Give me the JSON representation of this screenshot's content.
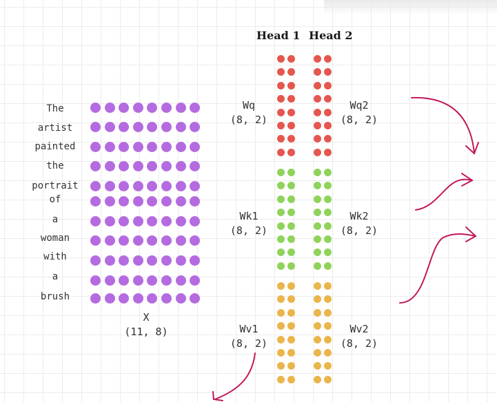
{
  "heads": [
    "Head 1",
    "Head 2"
  ],
  "words": [
    "The",
    "artist",
    "painted",
    "the",
    "portrait",
    "of",
    "a",
    "woman",
    "with",
    "a",
    "brush"
  ],
  "x_matrix": {
    "name": "X",
    "shape": "(11, 8)",
    "rows": 11,
    "cols": 8,
    "color": "#b56be0"
  },
  "weights": [
    {
      "side": "left",
      "name": "Wq",
      "shape": "(8, 2)",
      "group": 0
    },
    {
      "side": "right",
      "name": "Wq2",
      "shape": "(8, 2)",
      "group": 0
    },
    {
      "side": "left",
      "name": "Wk1",
      "shape": "(8, 2)",
      "group": 1
    },
    {
      "side": "right",
      "name": "Wk2",
      "shape": "(8, 2)",
      "group": 1
    },
    {
      "side": "left",
      "name": "Wv1",
      "shape": "(8, 2)",
      "group": 2
    },
    {
      "side": "right",
      "name": "Wv2",
      "shape": "(8, 2)",
      "group": 2
    }
  ],
  "colors": {
    "query": "#e4574f",
    "key": "#8fd35b",
    "value": "#eab54a",
    "arrow": "#c2185b"
  }
}
